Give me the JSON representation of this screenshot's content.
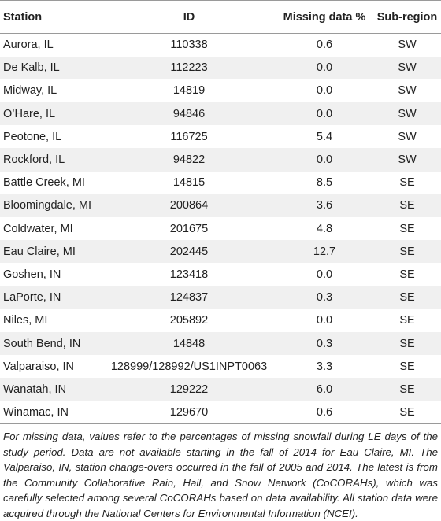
{
  "table": {
    "headers": {
      "station": "Station",
      "id": "ID",
      "missing": "Missing data %",
      "subregion": "Sub-region"
    },
    "rows": [
      {
        "station": "Aurora, IL",
        "id": "110338",
        "missing": "0.6",
        "subregion": "SW"
      },
      {
        "station": "De Kalb, IL",
        "id": "112223",
        "missing": "0.0",
        "subregion": "SW"
      },
      {
        "station": "Midway, IL",
        "id": "14819",
        "missing": "0.0",
        "subregion": "SW"
      },
      {
        "station": "O’Hare, IL",
        "id": "94846",
        "missing": "0.0",
        "subregion": "SW"
      },
      {
        "station": "Peotone, IL",
        "id": "116725",
        "missing": "5.4",
        "subregion": "SW"
      },
      {
        "station": "Rockford, IL",
        "id": "94822",
        "missing": "0.0",
        "subregion": "SW"
      },
      {
        "station": "Battle Creek, MI",
        "id": "14815",
        "missing": "8.5",
        "subregion": "SE"
      },
      {
        "station": "Bloomingdale, MI",
        "id": "200864",
        "missing": "3.6",
        "subregion": "SE"
      },
      {
        "station": "Coldwater, MI",
        "id": "201675",
        "missing": "4.8",
        "subregion": "SE"
      },
      {
        "station": "Eau Claire, MI",
        "id": "202445",
        "missing": "12.7",
        "subregion": "SE"
      },
      {
        "station": "Goshen, IN",
        "id": "123418",
        "missing": "0.0",
        "subregion": "SE"
      },
      {
        "station": "LaPorte, IN",
        "id": "124837",
        "missing": "0.3",
        "subregion": "SE"
      },
      {
        "station": "Niles, MI",
        "id": "205892",
        "missing": "0.0",
        "subregion": "SE"
      },
      {
        "station": "South Bend, IN",
        "id": "14848",
        "missing": "0.3",
        "subregion": "SE"
      },
      {
        "station": "Valparaiso, IN",
        "id": "128999/128992/US1INPT0063",
        "missing": "3.3",
        "subregion": "SE"
      },
      {
        "station": "Wanatah, IN",
        "id": "129222",
        "missing": "6.0",
        "subregion": "SE"
      },
      {
        "station": "Winamac, IN",
        "id": "129670",
        "missing": "0.6",
        "subregion": "SE"
      }
    ]
  },
  "footnote": "For missing data, values refer to the percentages of missing snowfall during LE days of the study period. Data are not available starting in the fall of 2014 for Eau Claire, MI. The Valparaiso, IN, station change-overs occurred in the fall of 2005 and 2014. The latest is from the Community Collaborative Rain, Hail, and Snow Network (CoCORAHs), which was carefully selected among several CoCORAHs based on data availability. All station data were acquired through the National Centers for Environmental Information (NCEI)."
}
